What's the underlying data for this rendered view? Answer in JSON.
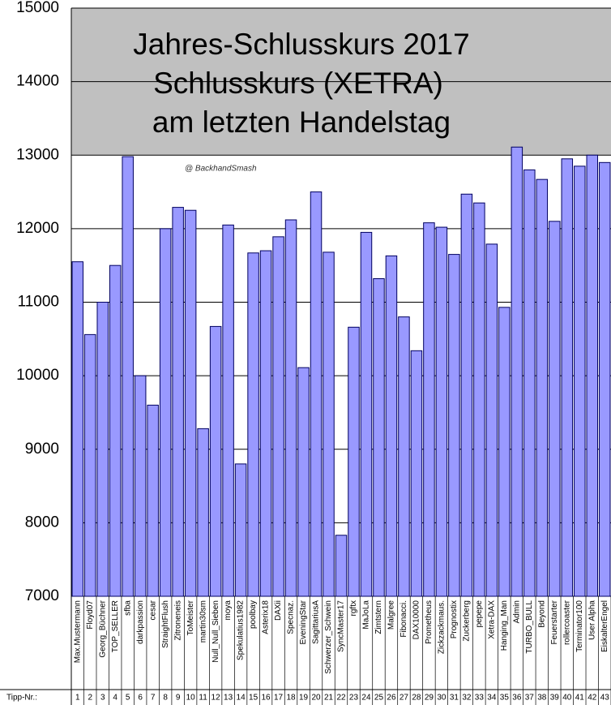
{
  "chart_data": {
    "type": "bar",
    "title": [
      "Jahres-Schlusskurs 2017",
      "Schlusskurs (XETRA)",
      "am letzten Handelstag"
    ],
    "annotation": "@ BackhandSmash",
    "number_label": "Tipp-Nr.:",
    "categories": [
      "Max.Mustermann",
      "Floyd07",
      "Georg_Büchner",
      "TOP_SELLER",
      "sfba",
      "darkpassion",
      "cesar",
      "StraightFlush",
      "Zitroneneis",
      "ToMeister",
      "martin30sm",
      "Null_Null_Sieben",
      "moya",
      "Spekulatius1982",
      "poolbay",
      "Asterix18",
      "DAXii",
      "Specnaz.",
      "EveningStar",
      "SagittariusA",
      "Schwerzer_Schwein",
      "SyncMaster17",
      "rgftx",
      "MaJoLa",
      "Zimtstern",
      "Malgree",
      "Fibonacci.",
      "DAX10000",
      "Prometheus",
      "Zickzackmaus.",
      "Prognostix",
      "Zuckerberg",
      "pepepe",
      "Xetra-DAX",
      "Hanging_Man",
      "Admin",
      "TURBO_BULL",
      "Beyond",
      "Feuerstarter",
      "rollercoaster",
      "Terminator100",
      "User Alpha",
      "EiskalterEngel"
    ],
    "numbers": [
      1,
      2,
      3,
      4,
      5,
      6,
      7,
      8,
      9,
      10,
      11,
      12,
      13,
      14,
      15,
      16,
      17,
      18,
      19,
      20,
      21,
      22,
      23,
      24,
      25,
      26,
      27,
      28,
      29,
      30,
      31,
      32,
      33,
      34,
      35,
      36,
      37,
      38,
      39,
      40,
      41,
      42,
      43
    ],
    "values": [
      11550,
      10560,
      11000,
      11500,
      12980,
      10000,
      9600,
      12000,
      12290,
      12250,
      9280,
      10670,
      12050,
      8800,
      11670,
      11700,
      11890,
      12120,
      10110,
      12500,
      11680,
      7830,
      10660,
      11950,
      11320,
      11630,
      10800,
      10340,
      12080,
      12020,
      11650,
      12470,
      12350,
      11790,
      10930,
      13110,
      12800,
      12670,
      12100,
      12950,
      12850,
      13000,
      12900
    ],
    "color": "#9999ff",
    "ylim": [
      7000,
      15000
    ],
    "yticks": [
      7000,
      8000,
      9000,
      10000,
      11000,
      12000,
      13000,
      14000,
      15000
    ],
    "grid": true
  }
}
